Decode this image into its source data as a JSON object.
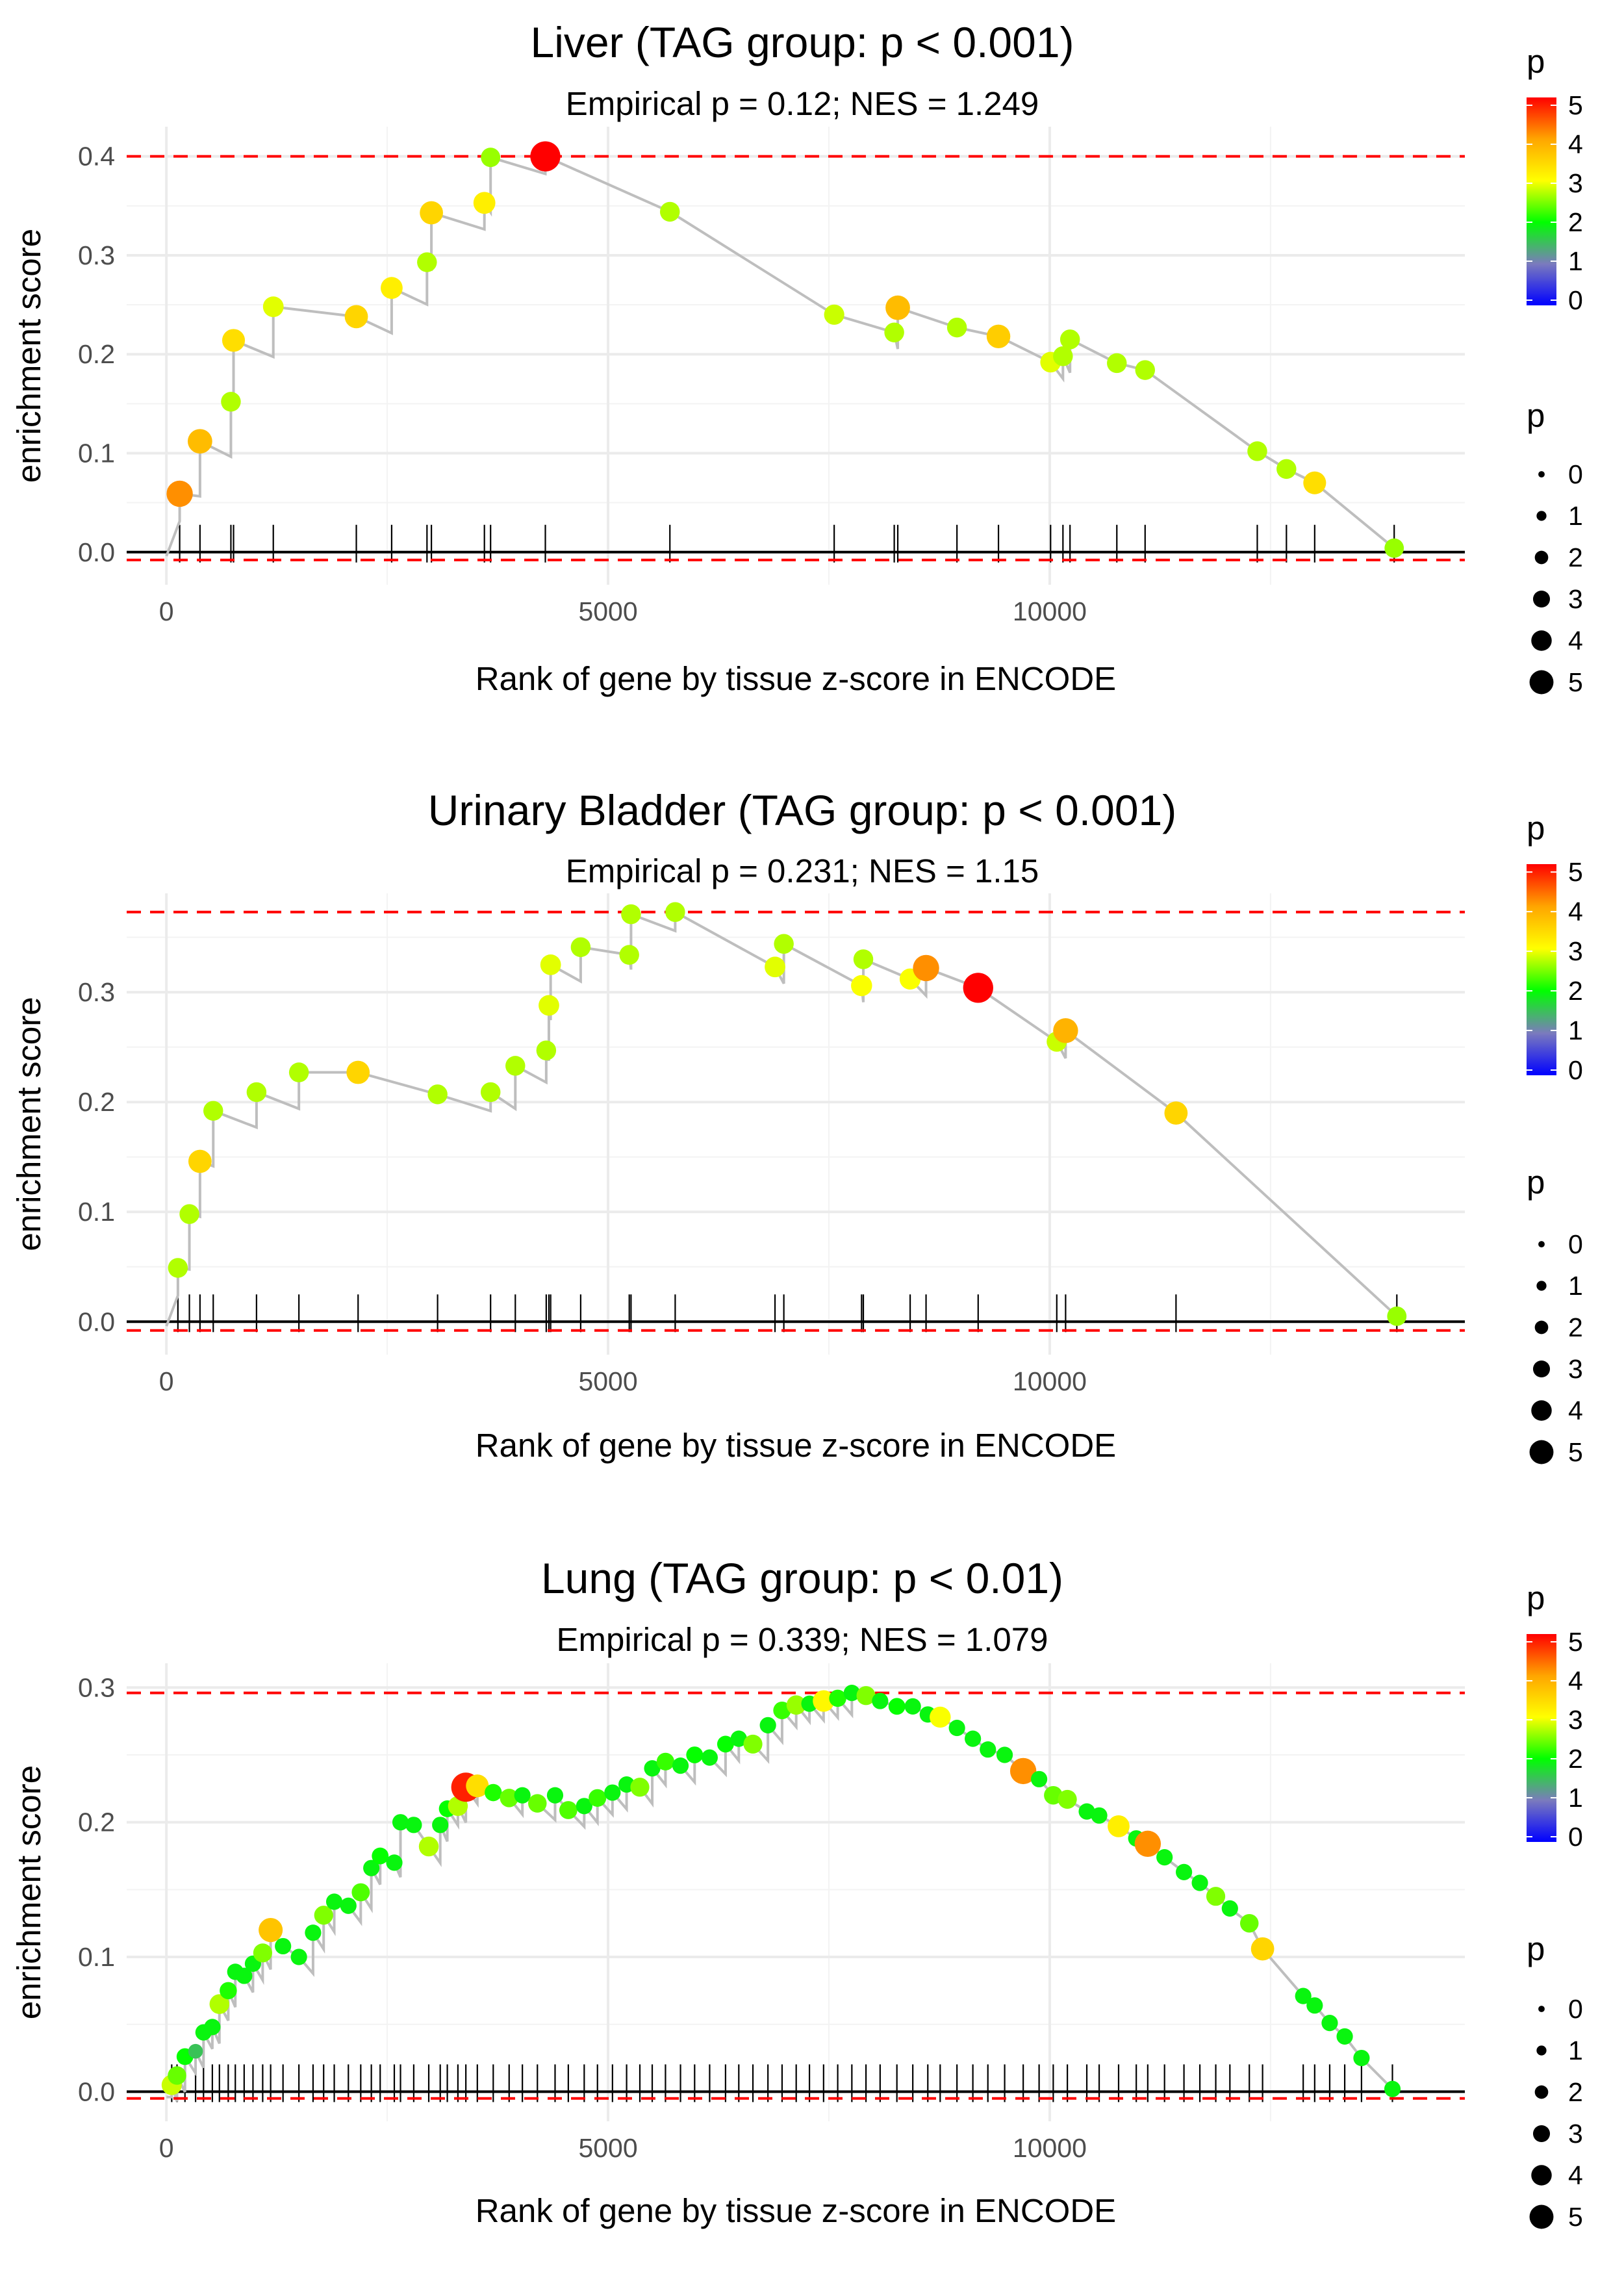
{
  "chart_data": [
    {
      "type": "scatter",
      "title": "Liver (TAG group: p < 0.001)",
      "subtitle": "Empirical p = 0.12; NES = 1.249",
      "xlabel": "Rank of gene by tissue z-score in ENCODE",
      "ylabel": "enrichment score",
      "xlim": [
        -450,
        14700
      ],
      "ylim": [
        -0.033,
        0.43
      ],
      "x_ticks": [
        0,
        5000,
        10000
      ],
      "x_tick_labels": [
        "0",
        "5000",
        "10000"
      ],
      "y_ticks": [
        0.0,
        0.1,
        0.2,
        0.3,
        0.4
      ],
      "y_tick_labels": [
        "0.0",
        "0.1",
        "0.2",
        "0.3",
        "0.4"
      ],
      "max_line": 0.4,
      "min_line": -0.008,
      "points": [
        {
          "x": 150,
          "y": 0.059,
          "p": 4.3
        },
        {
          "x": 380,
          "y": 0.112,
          "p": 3.9
        },
        {
          "x": 730,
          "y": 0.152,
          "p": 2.8
        },
        {
          "x": 760,
          "y": 0.214,
          "p": 3.5
        },
        {
          "x": 1210,
          "y": 0.248,
          "p": 3.0
        },
        {
          "x": 2150,
          "y": 0.238,
          "p": 3.6
        },
        {
          "x": 2550,
          "y": 0.267,
          "p": 3.3
        },
        {
          "x": 2950,
          "y": 0.293,
          "p": 2.8
        },
        {
          "x": 3000,
          "y": 0.343,
          "p": 3.6
        },
        {
          "x": 3600,
          "y": 0.353,
          "p": 3.3
        },
        {
          "x": 3670,
          "y": 0.399,
          "p": 2.7
        },
        {
          "x": 4290,
          "y": 0.4,
          "p": 5.2
        },
        {
          "x": 5700,
          "y": 0.344,
          "p": 2.8
        },
        {
          "x": 7560,
          "y": 0.24,
          "p": 2.9
        },
        {
          "x": 8240,
          "y": 0.222,
          "p": 2.8
        },
        {
          "x": 8280,
          "y": 0.247,
          "p": 3.9
        },
        {
          "x": 8950,
          "y": 0.227,
          "p": 2.8
        },
        {
          "x": 9420,
          "y": 0.218,
          "p": 3.7
        },
        {
          "x": 10010,
          "y": 0.192,
          "p": 3.0
        },
        {
          "x": 10150,
          "y": 0.198,
          "p": 2.8
        },
        {
          "x": 10230,
          "y": 0.215,
          "p": 2.8
        },
        {
          "x": 10760,
          "y": 0.191,
          "p": 2.8
        },
        {
          "x": 11080,
          "y": 0.184,
          "p": 2.8
        },
        {
          "x": 12350,
          "y": 0.102,
          "p": 2.8
        },
        {
          "x": 12680,
          "y": 0.084,
          "p": 2.8
        },
        {
          "x": 13000,
          "y": 0.07,
          "p": 3.5
        },
        {
          "x": 13900,
          "y": 0.004,
          "p": 2.7
        }
      ]
    },
    {
      "type": "scatter",
      "title": "Urinary Bladder (TAG group: p < 0.001)",
      "subtitle": "Empirical p = 0.231; NES = 1.15",
      "xlabel": "Rank of gene by tissue z-score in ENCODE",
      "ylabel": "enrichment score",
      "xlim": [
        -450,
        14700
      ],
      "ylim": [
        -0.03,
        0.39
      ],
      "x_ticks": [
        0,
        5000,
        10000
      ],
      "x_tick_labels": [
        "0",
        "5000",
        "10000"
      ],
      "y_ticks": [
        0.0,
        0.1,
        0.2,
        0.3
      ],
      "y_tick_labels": [
        "0.0",
        "0.1",
        "0.2",
        "0.3"
      ],
      "max_line": 0.373,
      "min_line": -0.008,
      "points": [
        {
          "x": 130,
          "y": 0.049,
          "p": 2.8
        },
        {
          "x": 260,
          "y": 0.098,
          "p": 2.8
        },
        {
          "x": 380,
          "y": 0.146,
          "p": 3.6
        },
        {
          "x": 530,
          "y": 0.192,
          "p": 2.8
        },
        {
          "x": 1020,
          "y": 0.209,
          "p": 2.8
        },
        {
          "x": 1500,
          "y": 0.227,
          "p": 2.8
        },
        {
          "x": 2170,
          "y": 0.227,
          "p": 3.6
        },
        {
          "x": 3070,
          "y": 0.207,
          "p": 2.8
        },
        {
          "x": 3670,
          "y": 0.209,
          "p": 2.8
        },
        {
          "x": 3950,
          "y": 0.233,
          "p": 2.8
        },
        {
          "x": 4300,
          "y": 0.247,
          "p": 2.8
        },
        {
          "x": 4330,
          "y": 0.288,
          "p": 3.0
        },
        {
          "x": 4350,
          "y": 0.325,
          "p": 3.0
        },
        {
          "x": 4690,
          "y": 0.341,
          "p": 2.8
        },
        {
          "x": 5240,
          "y": 0.334,
          "p": 2.8
        },
        {
          "x": 5260,
          "y": 0.371,
          "p": 2.8
        },
        {
          "x": 5760,
          "y": 0.373,
          "p": 2.8
        },
        {
          "x": 6890,
          "y": 0.323,
          "p": 3.0
        },
        {
          "x": 6990,
          "y": 0.344,
          "p": 2.8
        },
        {
          "x": 7870,
          "y": 0.306,
          "p": 3.1
        },
        {
          "x": 7890,
          "y": 0.33,
          "p": 2.8
        },
        {
          "x": 8420,
          "y": 0.312,
          "p": 3.1
        },
        {
          "x": 8600,
          "y": 0.322,
          "p": 4.3
        },
        {
          "x": 9190,
          "y": 0.304,
          "p": 5.2
        },
        {
          "x": 10080,
          "y": 0.255,
          "p": 2.9
        },
        {
          "x": 10180,
          "y": 0.265,
          "p": 4.0
        },
        {
          "x": 11430,
          "y": 0.19,
          "p": 3.6
        },
        {
          "x": 13930,
          "y": 0.005,
          "p": 2.7
        }
      ]
    },
    {
      "type": "scatter",
      "title": "Lung (TAG group: p < 0.01)",
      "subtitle": "Empirical p = 0.339; NES = 1.079",
      "xlabel": "Rank of gene by tissue z-score in ENCODE",
      "ylabel": "enrichment score",
      "xlim": [
        -450,
        14700
      ],
      "ylim": [
        -0.022,
        0.318
      ],
      "x_ticks": [
        0,
        5000,
        10000
      ],
      "x_tick_labels": [
        "0",
        "5000",
        "10000"
      ],
      "y_ticks": [
        0.0,
        0.1,
        0.2,
        0.3
      ],
      "y_tick_labels": [
        "0.0",
        "0.1",
        "0.2",
        "0.3"
      ],
      "max_line": 0.296,
      "min_line": -0.005,
      "points": [
        {
          "x": 60,
          "y": 0.005,
          "p": 2.9
        },
        {
          "x": 120,
          "y": 0.012,
          "p": 2.5
        },
        {
          "x": 210,
          "y": 0.026,
          "p": 2.1
        },
        {
          "x": 330,
          "y": 0.03,
          "p": 1.6
        },
        {
          "x": 420,
          "y": 0.044,
          "p": 2.0
        },
        {
          "x": 520,
          "y": 0.048,
          "p": 2.0
        },
        {
          "x": 600,
          "y": 0.065,
          "p": 2.8
        },
        {
          "x": 700,
          "y": 0.075,
          "p": 2.2
        },
        {
          "x": 780,
          "y": 0.089,
          "p": 2.0
        },
        {
          "x": 880,
          "y": 0.086,
          "p": 2.0
        },
        {
          "x": 980,
          "y": 0.095,
          "p": 2.0
        },
        {
          "x": 1090,
          "y": 0.103,
          "p": 2.6
        },
        {
          "x": 1180,
          "y": 0.12,
          "p": 3.8
        },
        {
          "x": 1320,
          "y": 0.108,
          "p": 2.0
        },
        {
          "x": 1500,
          "y": 0.1,
          "p": 2.0
        },
        {
          "x": 1660,
          "y": 0.118,
          "p": 2.0
        },
        {
          "x": 1780,
          "y": 0.131,
          "p": 2.6
        },
        {
          "x": 1900,
          "y": 0.141,
          "p": 2.0
        },
        {
          "x": 2060,
          "y": 0.138,
          "p": 2.0
        },
        {
          "x": 2200,
          "y": 0.148,
          "p": 2.4
        },
        {
          "x": 2320,
          "y": 0.166,
          "p": 2.0
        },
        {
          "x": 2420,
          "y": 0.175,
          "p": 2.1
        },
        {
          "x": 2580,
          "y": 0.17,
          "p": 2.0
        },
        {
          "x": 2650,
          "y": 0.2,
          "p": 2.0
        },
        {
          "x": 2800,
          "y": 0.198,
          "p": 2.0
        },
        {
          "x": 2970,
          "y": 0.182,
          "p": 2.8
        },
        {
          "x": 3100,
          "y": 0.198,
          "p": 2.0
        },
        {
          "x": 3180,
          "y": 0.21,
          "p": 2.1
        },
        {
          "x": 3300,
          "y": 0.212,
          "p": 2.8
        },
        {
          "x": 3390,
          "y": 0.226,
          "p": 5.0
        },
        {
          "x": 3520,
          "y": 0.227,
          "p": 3.5
        },
        {
          "x": 3700,
          "y": 0.222,
          "p": 2.2
        },
        {
          "x": 3880,
          "y": 0.218,
          "p": 2.5
        },
        {
          "x": 4030,
          "y": 0.22,
          "p": 2.0
        },
        {
          "x": 4200,
          "y": 0.214,
          "p": 2.5
        },
        {
          "x": 4400,
          "y": 0.22,
          "p": 2.0
        },
        {
          "x": 4550,
          "y": 0.209,
          "p": 2.4
        },
        {
          "x": 4730,
          "y": 0.212,
          "p": 2.0
        },
        {
          "x": 4880,
          "y": 0.218,
          "p": 2.3
        },
        {
          "x": 5050,
          "y": 0.222,
          "p": 2.0
        },
        {
          "x": 5210,
          "y": 0.228,
          "p": 2.0
        },
        {
          "x": 5360,
          "y": 0.226,
          "p": 2.6
        },
        {
          "x": 5500,
          "y": 0.24,
          "p": 2.0
        },
        {
          "x": 5650,
          "y": 0.245,
          "p": 2.3
        },
        {
          "x": 5820,
          "y": 0.242,
          "p": 2.0
        },
        {
          "x": 5980,
          "y": 0.25,
          "p": 2.1
        },
        {
          "x": 6150,
          "y": 0.248,
          "p": 2.0
        },
        {
          "x": 6330,
          "y": 0.258,
          "p": 2.1
        },
        {
          "x": 6480,
          "y": 0.262,
          "p": 2.0
        },
        {
          "x": 6640,
          "y": 0.258,
          "p": 2.6
        },
        {
          "x": 6810,
          "y": 0.272,
          "p": 2.0
        },
        {
          "x": 6970,
          "y": 0.283,
          "p": 2.3
        },
        {
          "x": 7130,
          "y": 0.287,
          "p": 2.7
        },
        {
          "x": 7280,
          "y": 0.288,
          "p": 2.0
        },
        {
          "x": 7440,
          "y": 0.29,
          "p": 3.2
        },
        {
          "x": 7600,
          "y": 0.292,
          "p": 2.2
        },
        {
          "x": 7760,
          "y": 0.296,
          "p": 2.0
        },
        {
          "x": 7920,
          "y": 0.294,
          "p": 2.6
        },
        {
          "x": 8080,
          "y": 0.29,
          "p": 2.0
        },
        {
          "x": 8270,
          "y": 0.286,
          "p": 2.1
        },
        {
          "x": 8450,
          "y": 0.286,
          "p": 2.0
        },
        {
          "x": 8620,
          "y": 0.28,
          "p": 2.0
        },
        {
          "x": 8760,
          "y": 0.278,
          "p": 3.1
        },
        {
          "x": 8950,
          "y": 0.27,
          "p": 2.0
        },
        {
          "x": 9130,
          "y": 0.262,
          "p": 2.0
        },
        {
          "x": 9300,
          "y": 0.254,
          "p": 2.0
        },
        {
          "x": 9490,
          "y": 0.25,
          "p": 2.0
        },
        {
          "x": 9700,
          "y": 0.238,
          "p": 4.3
        },
        {
          "x": 9880,
          "y": 0.232,
          "p": 2.0
        },
        {
          "x": 10040,
          "y": 0.22,
          "p": 2.5
        },
        {
          "x": 10200,
          "y": 0.217,
          "p": 2.6
        },
        {
          "x": 10420,
          "y": 0.208,
          "p": 2.0
        },
        {
          "x": 10560,
          "y": 0.205,
          "p": 2.0
        },
        {
          "x": 10780,
          "y": 0.197,
          "p": 3.3
        },
        {
          "x": 10980,
          "y": 0.188,
          "p": 2.0
        },
        {
          "x": 11110,
          "y": 0.184,
          "p": 4.3
        },
        {
          "x": 11300,
          "y": 0.174,
          "p": 2.0
        },
        {
          "x": 11520,
          "y": 0.163,
          "p": 2.0
        },
        {
          "x": 11700,
          "y": 0.155,
          "p": 2.0
        },
        {
          "x": 11880,
          "y": 0.145,
          "p": 2.6
        },
        {
          "x": 12040,
          "y": 0.136,
          "p": 2.0
        },
        {
          "x": 12260,
          "y": 0.125,
          "p": 2.5
        },
        {
          "x": 12410,
          "y": 0.106,
          "p": 3.6
        },
        {
          "x": 12870,
          "y": 0.071,
          "p": 2.0
        },
        {
          "x": 13000,
          "y": 0.064,
          "p": 2.0
        },
        {
          "x": 13170,
          "y": 0.051,
          "p": 2.0
        },
        {
          "x": 13340,
          "y": 0.041,
          "p": 2.0
        },
        {
          "x": 13530,
          "y": 0.025,
          "p": 2.0
        },
        {
          "x": 13880,
          "y": 0.002,
          "p": 2.0
        }
      ]
    }
  ],
  "legends": [
    {
      "color_title": "p",
      "size_title": "p",
      "color_ticks": [
        "0",
        "1",
        "2",
        "3",
        "4",
        "5"
      ],
      "size_labels": [
        "0",
        "1",
        "2",
        "3",
        "4",
        "5"
      ]
    },
    {
      "color_title": "p",
      "size_title": "p",
      "color_ticks": [
        "0",
        "1",
        "2",
        "3",
        "4",
        "5"
      ],
      "size_labels": [
        "0",
        "1",
        "2",
        "3",
        "4",
        "5"
      ]
    },
    {
      "color_title": "p",
      "size_title": "p",
      "color_ticks": [
        "0",
        "1",
        "2",
        "3",
        "4",
        "5"
      ],
      "size_labels": [
        "0",
        "1",
        "2",
        "3",
        "4",
        "5"
      ]
    }
  ],
  "colors": {
    "gradient": [
      "#0000ff",
      "#7b7bbd",
      "#00ff00",
      "#ffff00",
      "#ffa500",
      "#ff0000"
    ],
    "reference_line": "#ff0000",
    "path_line": "#bebebe",
    "gridline": "#ebebeb",
    "rug": "#000000"
  }
}
